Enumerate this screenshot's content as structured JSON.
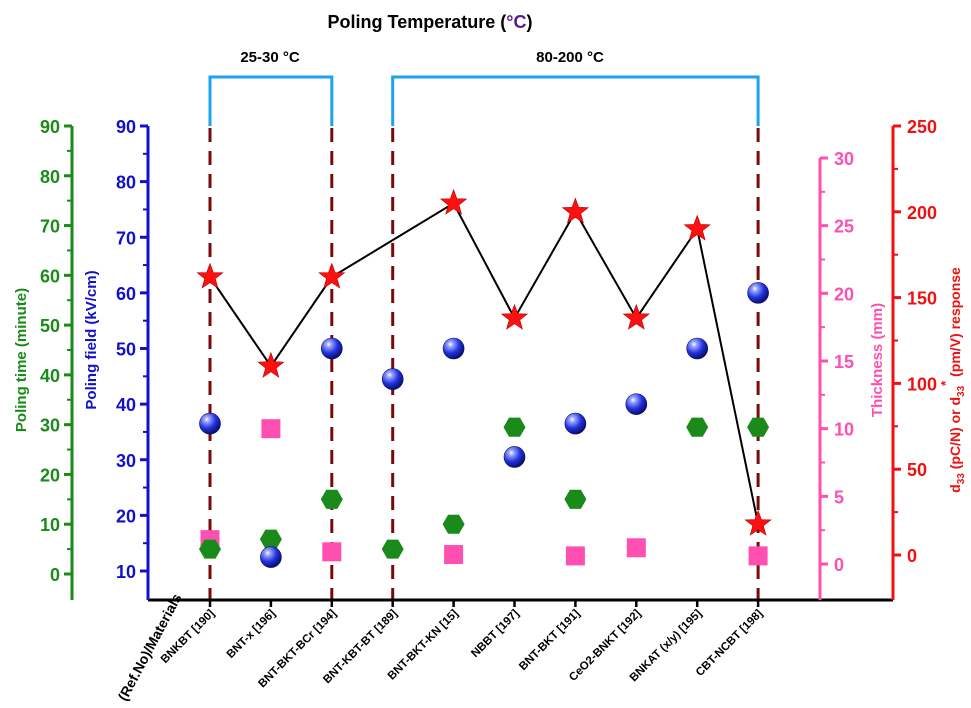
{
  "chart_data": {
    "type": "scatter",
    "title": "Poling Temperature (°C)",
    "title_main": "Poling Temperature (",
    "title_unit": "°C",
    "title_close": ")",
    "xlabel": "(Ref.No)/Materials",
    "categories": [
      "BNKBT [190]",
      "BNT-x [196]",
      "BNT-BKT-BCr [194]",
      "BNT-KBT-BT [189]",
      "BNT-BKT-KN [15]",
      "NBBT [197]",
      "BNT-BKT [191]",
      "CeO2-BNKT [192]",
      "BNKAT (x/y) [195]",
      "CBT-NCBT [198]"
    ],
    "temperature_groups": [
      {
        "label": "25-30 °C",
        "from": 0,
        "to": 2
      },
      {
        "label": "80-200 °C",
        "from": 3,
        "to": 9
      }
    ],
    "axes": {
      "poling_time": {
        "label": "Poling time (minute)",
        "range": [
          0,
          90
        ],
        "ticks": [
          "0",
          "10",
          "20",
          "30",
          "40",
          "50",
          "60",
          "70",
          "80",
          "90"
        ],
        "color": "#1a8a1a"
      },
      "poling_field": {
        "label": "Poling field (kV/cm)",
        "range": [
          10,
          90
        ],
        "ticks": [
          "10",
          "20",
          "30",
          "40",
          "50",
          "60",
          "70",
          "80",
          "90"
        ],
        "color": "#1111cc"
      },
      "thickness": {
        "label": "Thickness (mm)",
        "range": [
          0,
          30
        ],
        "ticks": [
          "0",
          "5",
          "10",
          "15",
          "20",
          "25",
          "30"
        ],
        "color": "#ff4fb0"
      },
      "d33": {
        "label": "d33 (pC/N) or d33* (pm/V) response",
        "range": [
          0,
          250
        ],
        "ticks": [
          "0",
          "50",
          "100",
          "150",
          "200",
          "250"
        ],
        "color": "#ee1111"
      }
    },
    "series": [
      {
        "name": "Poling field (kV/cm)",
        "axis": "poling_field",
        "marker": "sphere",
        "color": "#1f3fe0",
        "points": [
          [
            0,
            36.5
          ],
          [
            1,
            12.5
          ],
          [
            2,
            50
          ],
          [
            3,
            44.5
          ],
          [
            4,
            50
          ],
          [
            5,
            30.5
          ],
          [
            6,
            36.5
          ],
          [
            7,
            40
          ],
          [
            8,
            50
          ],
          [
            9,
            60
          ]
        ]
      },
      {
        "name": "Poling time (minute)",
        "axis": "poling_time",
        "marker": "hexagon",
        "color": "#1a8a1a",
        "points": [
          [
            0,
            5
          ],
          [
            1,
            7
          ],
          [
            2,
            15
          ],
          [
            3,
            5
          ],
          [
            4,
            10
          ],
          [
            5,
            29.5
          ],
          [
            6,
            15
          ],
          [
            8,
            29.5
          ],
          [
            9,
            29.5
          ]
        ]
      },
      {
        "name": "Thickness (mm)",
        "axis": "thickness",
        "marker": "square",
        "color": "#ff4fb0",
        "points": [
          [
            0,
            1.8
          ],
          [
            1,
            10
          ],
          [
            2,
            0.9
          ],
          [
            4,
            0.7
          ],
          [
            6,
            0.6
          ],
          [
            7,
            1.2
          ],
          [
            9,
            0.6
          ]
        ]
      },
      {
        "name": "d33 (pC/N) or d33* (pm/V) response",
        "axis": "d33",
        "marker": "star",
        "color": "#ff1010",
        "line_color": "#000000",
        "points": [
          [
            0,
            162
          ],
          [
            1,
            110
          ],
          [
            2,
            162
          ],
          [
            4,
            205
          ],
          [
            5,
            138
          ],
          [
            6,
            200
          ],
          [
            7,
            138
          ],
          [
            8,
            190
          ],
          [
            9,
            18
          ]
        ]
      }
    ]
  }
}
